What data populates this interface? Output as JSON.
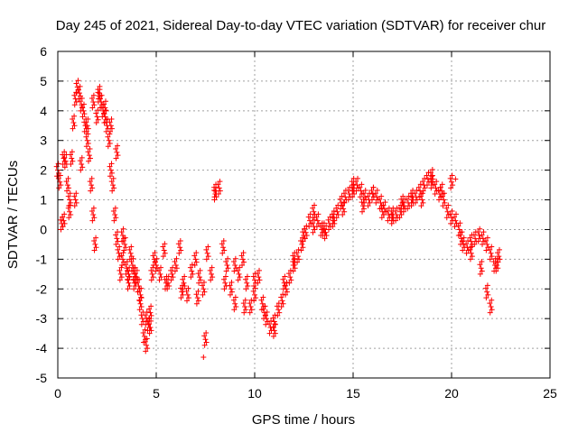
{
  "chart_data": {
    "type": "scatter",
    "title": "Day 245 of 2021, Sidereal Day-to-day VTEC variation (SDTVAR) for receiver chur",
    "xlabel": "GPS time / hours",
    "ylabel": "SDTVAR / TECUs",
    "xlim": [
      0,
      25
    ],
    "ylim": [
      -5,
      6
    ],
    "xticks": [
      "0",
      "5",
      "10",
      "15",
      "20",
      "25"
    ],
    "yticks": [
      "-5",
      "-4",
      "-3",
      "-2",
      "-1",
      "0",
      "1",
      "2",
      "3",
      "4",
      "5",
      "6"
    ],
    "grid": true,
    "marker": "+",
    "color": "#ff0000",
    "series": [
      {
        "name": "SDTVAR",
        "x": [
          0.0,
          0.1,
          0.2,
          0.3,
          0.4,
          0.5,
          0.6,
          0.7,
          0.8,
          0.9,
          1.0,
          1.1,
          1.2,
          1.3,
          1.4,
          1.5,
          1.6,
          1.7,
          1.8,
          1.9,
          2.0,
          2.1,
          2.2,
          2.3,
          2.4,
          2.5,
          2.6,
          2.7,
          2.8,
          2.9,
          3.0,
          3.1,
          3.2,
          3.3,
          3.4,
          3.5,
          3.6,
          3.7,
          3.8,
          3.9,
          4.0,
          4.1,
          4.2,
          4.3,
          4.4,
          4.5,
          4.6,
          4.7,
          4.8,
          4.9,
          5.0,
          5.2,
          5.4,
          5.6,
          5.8,
          6.0,
          6.2,
          6.4,
          6.6,
          6.8,
          7.0,
          7.2,
          7.4,
          7.6,
          7.8,
          8.0,
          8.2,
          8.4,
          8.6,
          8.8,
          9.0,
          9.2,
          9.4,
          9.6,
          9.8,
          10.0,
          10.2,
          10.4,
          10.6,
          10.8,
          11.0,
          11.2,
          11.4,
          11.6,
          11.8,
          12.0,
          12.2,
          12.4,
          12.6,
          12.8,
          13.0,
          13.2,
          13.4,
          13.6,
          13.8,
          14.0,
          14.2,
          14.4,
          14.6,
          14.8,
          15.0,
          15.2,
          15.4,
          15.6,
          15.8,
          16.0,
          16.2,
          16.4,
          16.6,
          16.8,
          17.0,
          17.2,
          17.4,
          17.6,
          17.8,
          18.0,
          18.2,
          18.4,
          18.6,
          18.8,
          19.0,
          19.2,
          19.4,
          19.6,
          19.8,
          20.0,
          20.2,
          20.4,
          20.6,
          20.8,
          21.0,
          21.2,
          21.4,
          21.6,
          21.8,
          22.0,
          22.2,
          22.4,
          0.3,
          0.6,
          0.9,
          1.2,
          1.5,
          1.8,
          2.1,
          2.4,
          2.7,
          3.0,
          3.3,
          3.6,
          3.9,
          4.2,
          4.5,
          4.7,
          5.5,
          6.3,
          7.1,
          7.5,
          8.0,
          8.5,
          9.0,
          9.5,
          10.0,
          10.5,
          11.0,
          11.5,
          12.0,
          12.5,
          13.0,
          13.5,
          14.0,
          14.5,
          15.0,
          15.5,
          16.0,
          16.5,
          17.0,
          17.5,
          18.0,
          18.5,
          19.0,
          19.5,
          20.0,
          20.5,
          21.0,
          21.5,
          21.8,
          22.0,
          22.3
        ],
        "y": [
          2.0,
          1.6,
          0.2,
          2.4,
          2.3,
          1.5,
          1.0,
          2.4,
          3.6,
          4.4,
          4.8,
          4.6,
          4.2,
          4.0,
          3.5,
          3.0,
          2.5,
          1.5,
          0.5,
          -0.5,
          3.8,
          4.5,
          4.3,
          4.0,
          3.8,
          3.5,
          3.0,
          2.0,
          1.5,
          0.5,
          -0.3,
          -0.8,
          -1.5,
          -1.0,
          -0.5,
          -1.3,
          -1.8,
          -0.8,
          -1.2,
          -1.5,
          -1.6,
          -1.9,
          -2.5,
          -3.0,
          -3.6,
          -3.9,
          -3.2,
          -2.8,
          -1.5,
          -1.0,
          -1.2,
          -1.5,
          -0.7,
          -1.8,
          -1.5,
          -1.2,
          -0.6,
          -1.8,
          -2.2,
          -1.4,
          -1.0,
          -1.6,
          -2.0,
          -0.8,
          -1.5,
          1.2,
          1.4,
          -0.6,
          -1.2,
          -2.0,
          -2.5,
          -1.5,
          -1.0,
          -1.8,
          -2.6,
          -2.2,
          -1.6,
          -2.5,
          -3.0,
          -3.3,
          -3.1,
          -2.7,
          -2.4,
          -2.0,
          -1.6,
          -1.2,
          -0.9,
          -0.5,
          -0.1,
          0.3,
          0.6,
          0.3,
          0.0,
          -0.1,
          0.2,
          0.4,
          0.6,
          0.9,
          1.1,
          1.2,
          1.3,
          1.5,
          1.3,
          1.1,
          1.0,
          1.2,
          1.1,
          0.9,
          0.7,
          0.5,
          0.4,
          0.5,
          0.6,
          0.8,
          0.9,
          1.0,
          1.1,
          1.3,
          1.5,
          1.7,
          1.6,
          1.4,
          1.2,
          1.0,
          0.6,
          0.4,
          0.3,
          0.0,
          -0.5,
          -0.6,
          -0.4,
          -0.3,
          -0.2,
          -0.3,
          -0.5,
          -0.8,
          -1.2,
          -0.9,
          0.3,
          0.6,
          1.0,
          2.2,
          3.5,
          4.3,
          4.6,
          4.1,
          3.5,
          2.6,
          -0.2,
          -1.5,
          -1.8,
          -2.2,
          -3.0,
          -3.3,
          -1.8,
          -2.1,
          -2.3,
          -3.7,
          1.3,
          -1.8,
          -1.2,
          -2.6,
          -1.7,
          -2.8,
          -3.4,
          -1.8,
          -1.0,
          -0.2,
          0.1,
          0.0,
          0.3,
          0.7,
          1.5,
          0.8,
          1.2,
          0.6,
          0.5,
          0.9,
          1.1,
          1.0,
          1.8,
          1.3,
          1.6,
          -0.3,
          -0.8,
          -1.3,
          -2.1,
          -2.6,
          -1.2
        ],
        "isolated": [
          {
            "x": 7.4,
            "y": -4.3
          },
          {
            "x": 20.2,
            "y": 1.7
          }
        ]
      }
    ]
  }
}
